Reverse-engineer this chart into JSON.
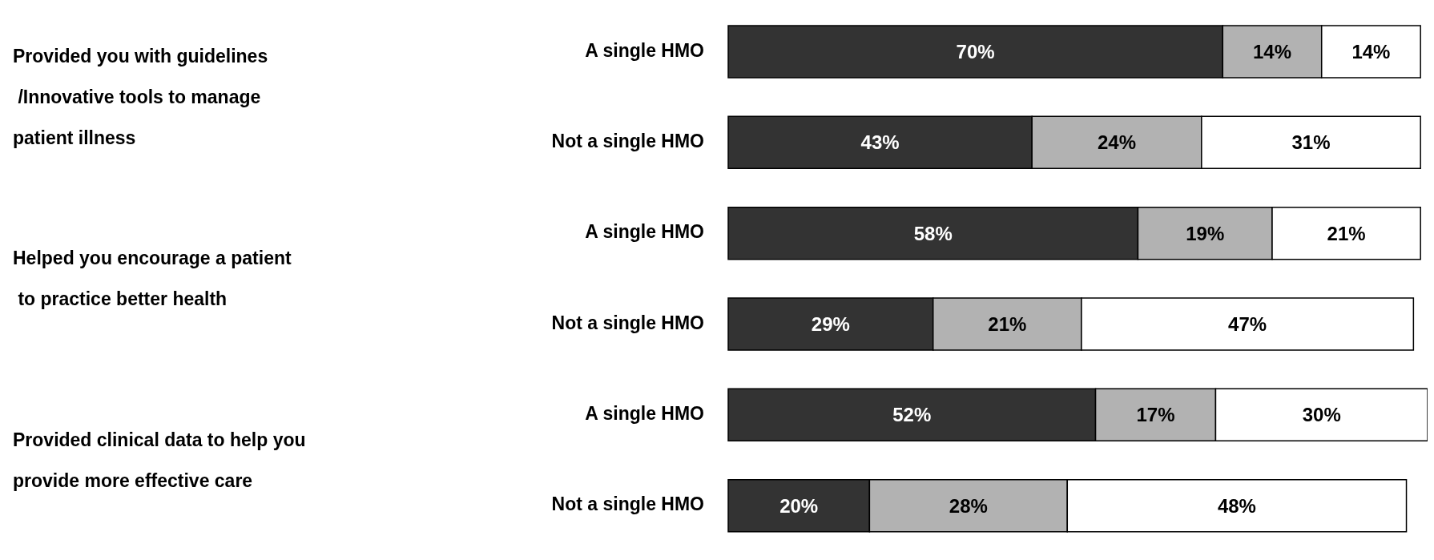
{
  "chart_data": {
    "type": "bar",
    "orientation": "horizontal",
    "stacked": true,
    "legend": false,
    "grid": false,
    "annotations": [
      "Provided you with guidelines\n /Innovative tools to manage\npatient illness",
      "Helped you encourage a patient\n to practice better health",
      "Provided clinical data to help you\nprovide more effective care"
    ],
    "categories": [
      "A single HMO",
      "Not a single HMO",
      "A single HMO",
      "Not a single HMO",
      "A single HMO",
      "Not a single HMO"
    ],
    "series": [
      {
        "color": "#333333",
        "values": [
          70,
          43,
          58,
          29,
          52,
          20
        ],
        "value_labels": [
          "70%",
          "43%",
          "58%",
          "29%",
          "52%",
          "20%"
        ]
      },
      {
        "color": "#b2b2b2",
        "values": [
          14,
          24,
          19,
          21,
          17,
          28
        ],
        "value_labels": [
          "14%",
          "24%",
          "19%",
          "21%",
          "17%",
          "28%"
        ]
      },
      {
        "color": "#ffffff",
        "values": [
          14,
          31,
          21,
          47,
          30,
          48
        ],
        "value_labels": [
          "14%",
          "31%",
          "21%",
          "47%",
          "30%",
          "48%"
        ]
      }
    ]
  }
}
